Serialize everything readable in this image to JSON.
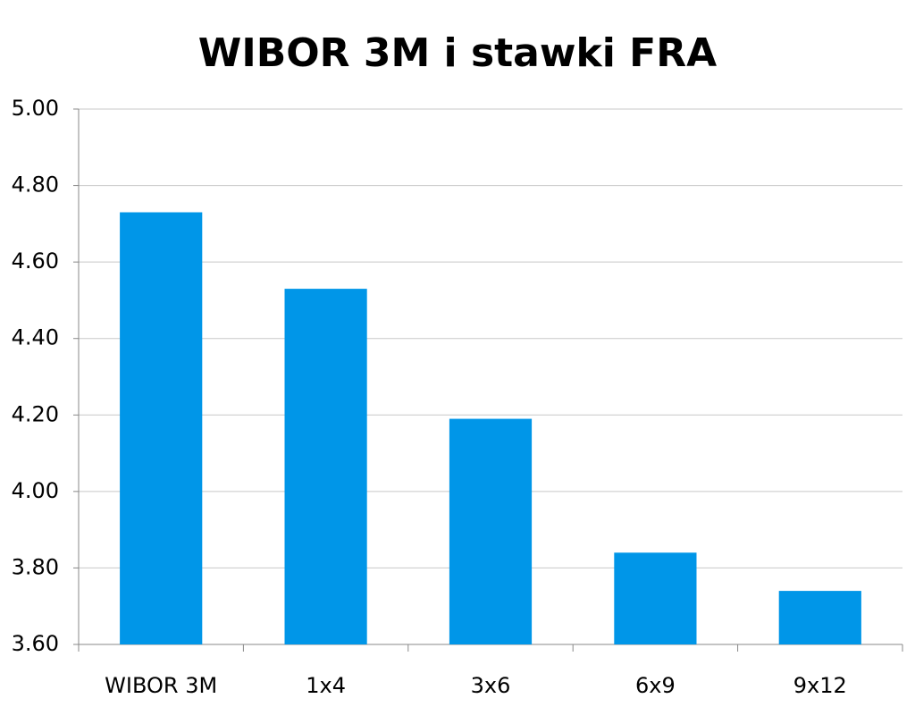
{
  "chart_data": {
    "type": "bar",
    "title": "WIBOR 3M i stawki FRA",
    "categories": [
      "WIBOR 3M",
      "1x4",
      "3x6",
      "6x9",
      "9x12"
    ],
    "values": [
      4.73,
      4.53,
      4.19,
      3.84,
      3.74
    ],
    "color": "#0096e8",
    "ylim": [
      3.6,
      5.0
    ],
    "yticks": [
      {
        "value": 3.6,
        "label": "3.60"
      },
      {
        "value": 3.8,
        "label": "3.80"
      },
      {
        "value": 4.0,
        "label": "4.00"
      },
      {
        "value": 4.2,
        "label": "4.20"
      },
      {
        "value": 4.4,
        "label": "4.40"
      },
      {
        "value": 4.6,
        "label": "4.60"
      },
      {
        "value": 4.8,
        "label": "4.80"
      },
      {
        "value": 5.0,
        "label": "5.00"
      }
    ],
    "grid": true
  }
}
